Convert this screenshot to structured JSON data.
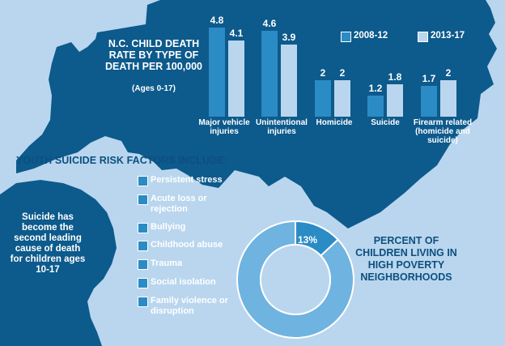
{
  "chart_data": {
    "type": "bar",
    "title": "N.C. CHILD DEATH RATE BY TYPE OF DEATH PER 100,000",
    "subtitle": "(Ages 0-17)",
    "categories": [
      "Major vehicle injuries",
      "Unintentional injuries",
      "Homicide",
      "Suicide",
      "Firearm related (homicide and suicide)"
    ],
    "series": [
      {
        "name": "2008-12",
        "values": [
          4.8,
          4.6,
          2,
          1.2,
          1.7
        ],
        "labels": [
          "4.8",
          "4.6",
          "2",
          "1.2",
          "1.7"
        ]
      },
      {
        "name": "2013-17",
        "values": [
          4.1,
          3.9,
          2,
          1.8,
          2
        ],
        "labels": [
          "4.1",
          "3.9",
          "2",
          "1.8",
          "2"
        ]
      }
    ],
    "legend_position": "top-right",
    "colors": {
      "series_2008": "#2b8bc5",
      "series_2013": "#b9d6ee"
    }
  },
  "donut": {
    "type": "pie",
    "value_percent": 13,
    "label": "13%",
    "caption": "PERCENT OF CHILDREN LIVING IN HIGH POVERTY NEIGHBORHOODS",
    "colors": {
      "highlight": "#2b8bc5",
      "rest": "#6fb3e0"
    }
  },
  "risk_factors": {
    "heading": "YOUTH SUICIDE RISK FACTORS INCLUDE:",
    "items": [
      "Persistent stress",
      "Acute loss or rejection",
      "Bullying",
      "Childhood abuse",
      "Trauma",
      "Social isolation",
      "Family violence or disruption"
    ]
  },
  "suicide_note": "Suicide has become the second leading cause of death for children ages 10-17",
  "colors": {
    "map_dark": "#0d5a8c",
    "background": "#b9d6ee",
    "text_dark": "#0d4f7f"
  }
}
